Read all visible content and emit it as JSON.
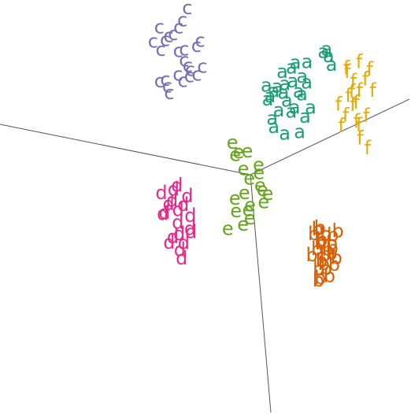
{
  "chart_data": {
    "type": "scatter",
    "subtype": "3d-projected scatter with letter markers",
    "title": "",
    "grid": false,
    "legend": "none",
    "axes_lines": 3,
    "series": [
      {
        "label": "a",
        "color": "#1b9e77",
        "approx_count": 60,
        "x": [
          0.1,
          0.15,
          0.2,
          0.05,
          0.12,
          0.18,
          0.25,
          0.3,
          0.08,
          0.22,
          0.14,
          0.28,
          0.02,
          0.18,
          0.35,
          0.26,
          0.1,
          0.06,
          0.32,
          0.2,
          0.15,
          0.24,
          0.12,
          0.3,
          0.2,
          0.42,
          0.38,
          0.45,
          0.4,
          0.28
        ],
        "y": [
          0.6,
          0.55,
          0.66,
          0.48,
          0.7,
          0.52,
          0.6,
          0.65,
          0.58,
          0.45,
          0.4,
          0.56,
          0.62,
          0.74,
          0.5,
          0.7,
          0.36,
          0.52,
          0.44,
          0.78,
          0.62,
          0.48,
          0.3,
          0.32,
          0.28,
          0.88,
          0.9,
          0.82,
          0.92,
          0.8
        ],
        "z": [
          0.45,
          0.48,
          0.5,
          0.42,
          0.55,
          0.4,
          0.46,
          0.58,
          0.38,
          0.35,
          0.44,
          0.52,
          0.36,
          0.6,
          0.42,
          0.56,
          0.32,
          0.4,
          0.34,
          0.62,
          0.5,
          0.38,
          0.3,
          0.28,
          0.26,
          0.7,
          0.72,
          0.68,
          0.74,
          0.66
        ]
      },
      {
        "label": "b",
        "color": "#d95f02",
        "approx_count": 50,
        "x": [
          0.55,
          0.6,
          0.65,
          0.58,
          0.62,
          0.68,
          0.52,
          0.66,
          0.6,
          0.57,
          0.64,
          0.7,
          0.54,
          0.62,
          0.59,
          0.67,
          0.63,
          0.56,
          0.69,
          0.61,
          0.58,
          0.65,
          0.53,
          0.6,
          0.66
        ],
        "y": [
          -0.4,
          -0.45,
          -0.5,
          -0.55,
          -0.6,
          -0.42,
          -0.48,
          -0.58,
          -0.65,
          -0.52,
          -0.7,
          -0.62,
          -0.44,
          -0.68,
          -0.72,
          -0.75,
          -0.56,
          -0.6,
          -0.66,
          -0.78,
          -0.5,
          -0.46,
          -0.64,
          -0.8,
          -0.54
        ],
        "z": [
          0.1,
          0.12,
          0.08,
          0.15,
          0.05,
          0.18,
          0.14,
          0.06,
          0.02,
          0.11,
          0.0,
          0.09,
          0.16,
          0.04,
          0.01,
          -0.02,
          0.07,
          0.13,
          0.03,
          -0.04,
          0.1,
          0.17,
          0.06,
          -0.05,
          0.08
        ]
      },
      {
        "label": "c",
        "color": "#7570b3",
        "approx_count": 55,
        "x": [
          -0.6,
          -0.65,
          -0.55,
          -0.7,
          -0.5,
          -0.62,
          -0.58,
          -0.68,
          -0.52,
          -0.75,
          -0.45,
          -0.66,
          -0.56,
          -0.72,
          -0.48,
          -0.6,
          -0.54,
          -0.64,
          -0.42,
          -0.78,
          -0.58,
          -0.5,
          -0.62,
          -0.46,
          -0.7
        ],
        "y": [
          0.6,
          0.7,
          0.55,
          0.65,
          0.5,
          0.75,
          0.45,
          0.68,
          0.52,
          0.72,
          0.48,
          0.4,
          0.62,
          0.58,
          0.66,
          0.8,
          0.42,
          0.36,
          0.54,
          0.62,
          0.9,
          0.46,
          0.32,
          0.7,
          0.38
        ],
        "z": [
          0.7,
          0.8,
          0.65,
          0.75,
          0.6,
          0.85,
          0.55,
          0.78,
          0.62,
          0.82,
          0.58,
          0.5,
          0.72,
          0.68,
          0.76,
          0.9,
          0.52,
          0.46,
          0.64,
          0.72,
          1.0,
          0.56,
          0.42,
          0.8,
          0.48
        ]
      },
      {
        "label": "d",
        "color": "#e7298a",
        "approx_count": 40,
        "x": [
          -0.4,
          -0.45,
          -0.5,
          -0.35,
          -0.55,
          -0.42,
          -0.48,
          -0.38,
          -0.52,
          -0.44,
          -0.36,
          -0.58,
          -0.46,
          -0.4,
          -0.5,
          -0.34,
          -0.54,
          -0.42,
          -0.48,
          -0.38
        ],
        "y": [
          -0.3,
          -0.4,
          -0.35,
          -0.5,
          -0.45,
          -0.55,
          -0.25,
          -0.6,
          -0.38,
          -0.48,
          -0.42,
          -0.32,
          -0.58,
          -0.65,
          -0.28,
          -0.52,
          -0.44,
          -0.36,
          -0.62,
          -0.7
        ],
        "z": [
          -0.2,
          -0.3,
          -0.25,
          -0.4,
          -0.35,
          -0.45,
          -0.15,
          -0.5,
          -0.28,
          -0.38,
          -0.32,
          -0.22,
          -0.48,
          -0.55,
          -0.18,
          -0.42,
          -0.34,
          -0.26,
          -0.52,
          -0.6
        ]
      },
      {
        "label": "e",
        "color": "#66a61e",
        "approx_count": 45,
        "x": [
          -0.1,
          -0.05,
          0.0,
          0.05,
          -0.15,
          0.1,
          -0.02,
          0.06,
          -0.08,
          0.02,
          -0.12,
          0.08,
          -0.04,
          0.04,
          0.12,
          -0.06,
          0.0,
          0.14,
          -0.1,
          0.03
        ],
        "y": [
          0.1,
          0.0,
          -0.05,
          0.05,
          0.15,
          -0.1,
          -0.15,
          0.0,
          -0.2,
          -0.25,
          0.08,
          -0.08,
          0.12,
          -0.3,
          -0.18,
          -0.28,
          -0.35,
          -0.12,
          -0.4,
          -0.22
        ],
        "z": [
          0.05,
          -0.05,
          -0.1,
          0.0,
          0.1,
          -0.15,
          -0.2,
          -0.05,
          -0.25,
          -0.3,
          0.02,
          -0.12,
          0.06,
          -0.35,
          -0.22,
          -0.32,
          -0.4,
          -0.16,
          -0.45,
          -0.26
        ]
      },
      {
        "label": "f",
        "color": "#e6ab02",
        "approx_count": 55,
        "x": [
          0.55,
          0.6,
          0.65,
          0.7,
          0.58,
          0.62,
          0.68,
          0.72,
          0.54,
          0.66,
          0.6,
          0.74,
          0.56,
          0.64,
          0.7,
          0.52,
          0.68,
          0.62,
          0.58,
          0.76
        ],
        "y": [
          0.9,
          0.85,
          0.8,
          0.95,
          0.75,
          0.7,
          0.88,
          0.65,
          0.92,
          0.6,
          0.78,
          0.82,
          0.55,
          0.72,
          0.5,
          0.68,
          0.58,
          0.98,
          0.62,
          0.45
        ],
        "z": [
          0.4,
          0.35,
          0.3,
          0.45,
          0.25,
          0.2,
          0.38,
          0.15,
          0.42,
          0.1,
          0.28,
          0.32,
          0.05,
          0.22,
          0.0,
          0.18,
          0.08,
          0.48,
          0.12,
          -0.05
        ]
      }
    ]
  }
}
